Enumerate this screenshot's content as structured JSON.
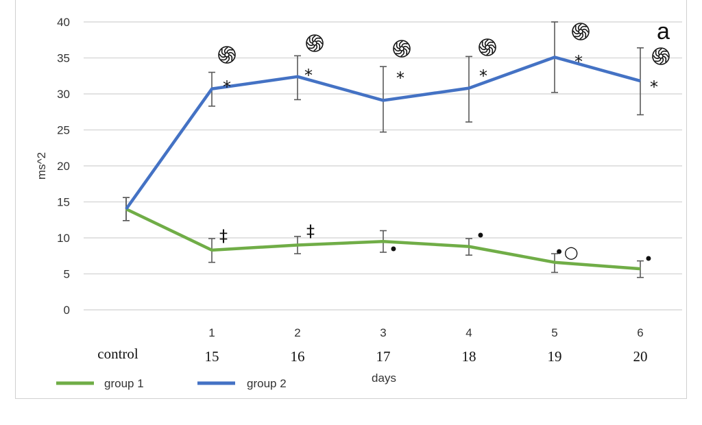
{
  "chart_data": {
    "type": "line",
    "title": "",
    "ylabel": "ms^2",
    "xlabel": "days",
    "ylim": [
      0,
      40
    ],
    "yticks": [
      0,
      5,
      10,
      15,
      20,
      25,
      30,
      35,
      40
    ],
    "grid": true,
    "legend_position": "bottom-left",
    "categories": [
      "control",
      "1",
      "2",
      "3",
      "4",
      "5",
      "6"
    ],
    "category_days": [
      "",
      "15",
      "16",
      "17",
      "18",
      "19",
      "20"
    ],
    "corner_label": "a",
    "series": [
      {
        "name": "group 1",
        "color": "#70ad47",
        "values": [
          14.0,
          8.3,
          9.0,
          9.5,
          8.8,
          6.6,
          5.7
        ],
        "error_low": [
          12.4,
          6.6,
          7.8,
          8.0,
          7.6,
          5.2,
          4.5
        ],
        "error_high": [
          15.6,
          9.9,
          10.2,
          11.0,
          9.9,
          7.8,
          6.8
        ],
        "annotations": [
          "",
          "‡",
          "‡",
          "•",
          "•",
          "•○",
          "•"
        ]
      },
      {
        "name": "group 2",
        "color": "#4472c4",
        "values": [
          14.0,
          30.7,
          32.4,
          29.1,
          30.8,
          35.1,
          31.8
        ],
        "error_low": [
          12.4,
          28.3,
          29.2,
          24.7,
          26.1,
          30.2,
          27.1
        ],
        "error_high": [
          15.6,
          33.0,
          35.3,
          33.8,
          35.2,
          40.0,
          36.4
        ],
        "annotations": [
          "",
          "*",
          "*",
          "*",
          "*",
          "*",
          "*"
        ],
        "symbol_annotations": [
          "",
          "swirl",
          "swirl",
          "swirl",
          "swirl",
          "swirl",
          "swirl"
        ]
      }
    ]
  }
}
